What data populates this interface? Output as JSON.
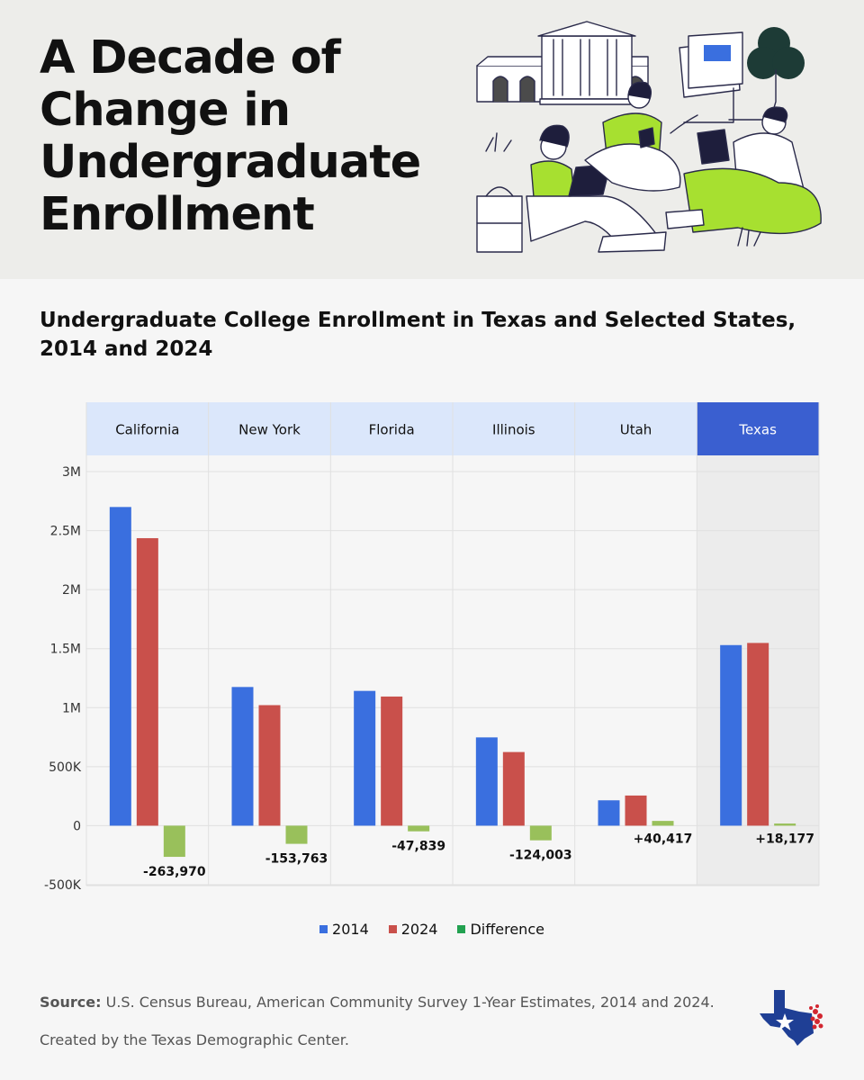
{
  "header": {
    "title": "A Decade of Change in Undergraduate Enrollment"
  },
  "chart_title": "Undergraduate College Enrollment in Texas and Selected States, 2014 and 2024",
  "chart_data": {
    "type": "bar",
    "title": "Undergraduate College Enrollment in Texas and Selected States, 2014 and 2024",
    "categories": [
      "California",
      "New York",
      "Florida",
      "Illinois",
      "Utah",
      "Texas"
    ],
    "highlighted_category": "Texas",
    "series": [
      {
        "name": "2014",
        "values": [
          2700000,
          1175000,
          1142000,
          748000,
          215000,
          1530000
        ]
      },
      {
        "name": "2024",
        "values": [
          2436030,
          1021237,
          1094161,
          623997,
          255417,
          1548177
        ]
      },
      {
        "name": "Difference",
        "values": [
          -263970,
          -153763,
          -47839,
          -124003,
          40417,
          18177
        ]
      }
    ],
    "difference_labels": [
      "-263,970",
      "-153,763",
      "-47,839",
      "-124,003",
      "+40,417",
      "+18,177"
    ],
    "y_ticks": [
      3000000,
      2500000,
      2000000,
      1500000,
      1000000,
      500000,
      0,
      -500000
    ],
    "y_tick_labels": [
      "3M",
      "2.5M",
      "2M",
      "1.5M",
      "1M",
      "500K",
      "0",
      "-500K"
    ],
    "ylim": [
      -500000,
      3000000
    ],
    "xlabel": "",
    "ylabel": "",
    "grid": true,
    "legend_position": "bottom-center",
    "colors": {
      "2014": "#3a6fdf",
      "2024": "#c9504b",
      "Difference": "#99c05b",
      "legend_difference": "#22a150",
      "header_fill": "#dbe7fb",
      "header_fill_highlight": "#3a5fd0",
      "highlight_panel": "#ececec"
    }
  },
  "legend": {
    "items": [
      {
        "label": "2014",
        "color": "#3a6fdf"
      },
      {
        "label": "2024",
        "color": "#c9504b"
      },
      {
        "label": "Difference",
        "color": "#22a150"
      }
    ]
  },
  "footer": {
    "source_label": "Source:",
    "source_text": " U.S. Census Bureau, American Community Survey 1-Year Estimates, 2014 and 2024.",
    "credit": "Created by the Texas Demographic Center."
  }
}
